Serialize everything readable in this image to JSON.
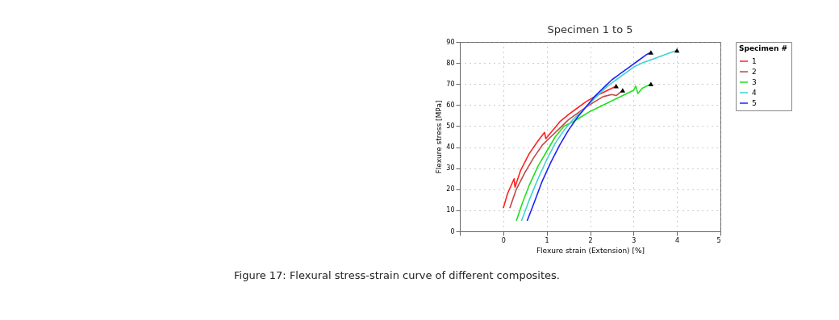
{
  "chart_data": {
    "type": "line",
    "title": "Specimen 1 to 5",
    "xlabel": "Flexure strain (Extension) [%]",
    "ylabel": "Flexure stress [MPa]",
    "legend_title": "Specimen #",
    "xlim": [
      -1,
      5
    ],
    "xticks": [
      {
        "value": -1,
        "label": null
      },
      0,
      1,
      2,
      3,
      4,
      5
    ],
    "ylim": [
      0,
      90
    ],
    "yticks": [
      0,
      10,
      20,
      30,
      40,
      50,
      60,
      70,
      80,
      90
    ],
    "grid": true,
    "legend": "right",
    "line_style": "solid",
    "marker": "none",
    "series": [
      {
        "name": "1",
        "color": "#ff2020",
        "x": [
          0,
          0.1,
          0.25,
          0.27,
          0.4,
          0.6,
          0.8,
          0.95,
          0.98,
          1.1,
          1.3,
          1.5,
          1.7,
          1.9,
          2.1,
          2.3,
          2.5,
          2.6
        ],
        "values": [
          11,
          18,
          25,
          21,
          29,
          37,
          43,
          47,
          44,
          47,
          52,
          55.5,
          58.5,
          61.5,
          64,
          66,
          68,
          69
        ]
      },
      {
        "name": "2",
        "color": "#c04848",
        "x": [
          0.15,
          0.3,
          0.5,
          0.7,
          0.9,
          1.1,
          1.3,
          1.5,
          1.7,
          1.9,
          2.1,
          2.3,
          2.5,
          2.6,
          2.75
        ],
        "values": [
          11,
          20,
          28,
          35,
          41,
          45,
          49,
          53,
          56,
          59,
          61.5,
          64,
          65,
          64.5,
          67
        ]
      },
      {
        "name": "3",
        "color": "#20e020",
        "x": [
          0.3,
          0.45,
          0.6,
          0.8,
          1.0,
          1.2,
          1.4,
          1.6,
          1.8,
          2.0,
          2.2,
          2.4,
          2.6,
          2.8,
          3.0,
          3.05,
          3.1,
          3.2,
          3.4
        ],
        "values": [
          5,
          14,
          22,
          31,
          38,
          45,
          50,
          52,
          54.5,
          57,
          59,
          61,
          63,
          65,
          67,
          69,
          65.5,
          68,
          70
        ]
      },
      {
        "name": "4",
        "color": "#40d0d0",
        "x": [
          0.42,
          0.6,
          0.8,
          1.0,
          1.2,
          1.4,
          1.6,
          1.8,
          2.0,
          2.2,
          2.4,
          2.6,
          2.8,
          3.0,
          3.2,
          3.4,
          3.6,
          3.8,
          4.0
        ],
        "values": [
          5,
          15,
          25,
          34,
          42,
          48,
          53,
          57,
          61,
          65,
          69,
          72,
          75,
          78,
          80,
          81.5,
          83,
          84.5,
          86
        ]
      },
      {
        "name": "5",
        "color": "#2020ff",
        "x": [
          0.55,
          0.7,
          0.9,
          1.1,
          1.3,
          1.5,
          1.7,
          1.9,
          2.1,
          2.3,
          2.5,
          2.7,
          2.9,
          3.1,
          3.3,
          3.4
        ],
        "values": [
          5,
          13,
          24,
          33,
          41,
          48,
          54,
          59,
          64,
          68,
          72,
          75,
          78,
          81,
          84,
          85
        ]
      },
      {
        "type": "scatter",
        "marker": "triangle",
        "color": "#000000",
        "x": [
          2.6,
          2.75,
          3.4,
          4.0,
          3.4
        ],
        "values": [
          69,
          67,
          70,
          86,
          85
        ]
      }
    ],
    "annotations": [
      "Figure 17: Flexural stress-strain curve of different composites."
    ]
  }
}
